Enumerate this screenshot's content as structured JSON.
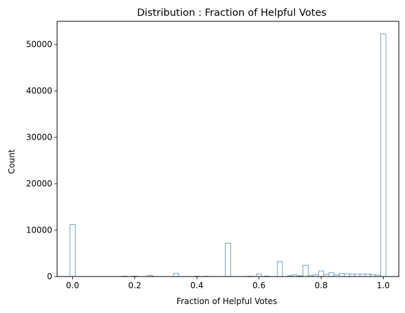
{
  "chart_data": {
    "type": "bar",
    "title": "Distribution : Fraction of Helpful Votes",
    "xlabel": "Fraction of Helpful Votes",
    "ylabel": "Count",
    "xlim": [
      -0.05,
      1.05
    ],
    "ylim": [
      0,
      55000
    ],
    "xticks": [
      0.0,
      0.2,
      0.4,
      0.6,
      0.8,
      1.0
    ],
    "xtick_labels": [
      "0.0",
      "0.2",
      "0.4",
      "0.6",
      "0.8",
      "1.0"
    ],
    "yticks": [
      0,
      10000,
      20000,
      30000,
      40000,
      50000
    ],
    "ytick_labels": [
      "0",
      "10000",
      "20000",
      "30000",
      "40000",
      "50000"
    ],
    "bar_edge_color": "#4c8fbd",
    "bar_fill_color": "#ffffff",
    "grid": false,
    "bin_width": 0.0167,
    "bins": [
      {
        "x": 0.0,
        "count": 11200
      },
      {
        "x": 0.167,
        "count": 80
      },
      {
        "x": 0.2,
        "count": 100
      },
      {
        "x": 0.25,
        "count": 200
      },
      {
        "x": 0.333,
        "count": 700
      },
      {
        "x": 0.4,
        "count": 80
      },
      {
        "x": 0.429,
        "count": 60
      },
      {
        "x": 0.5,
        "count": 7200
      },
      {
        "x": 0.571,
        "count": 70
      },
      {
        "x": 0.6,
        "count": 550
      },
      {
        "x": 0.625,
        "count": 100
      },
      {
        "x": 0.667,
        "count": 3200
      },
      {
        "x": 0.7,
        "count": 150
      },
      {
        "x": 0.714,
        "count": 350
      },
      {
        "x": 0.733,
        "count": 150
      },
      {
        "x": 0.75,
        "count": 2450
      },
      {
        "x": 0.767,
        "count": 200
      },
      {
        "x": 0.783,
        "count": 350
      },
      {
        "x": 0.8,
        "count": 1200
      },
      {
        "x": 0.817,
        "count": 450
      },
      {
        "x": 0.833,
        "count": 850
      },
      {
        "x": 0.85,
        "count": 350
      },
      {
        "x": 0.867,
        "count": 650
      },
      {
        "x": 0.883,
        "count": 600
      },
      {
        "x": 0.9,
        "count": 550
      },
      {
        "x": 0.917,
        "count": 550
      },
      {
        "x": 0.933,
        "count": 550
      },
      {
        "x": 0.95,
        "count": 550
      },
      {
        "x": 0.967,
        "count": 450
      },
      {
        "x": 0.983,
        "count": 300
      },
      {
        "x": 1.0,
        "count": 52300
      }
    ]
  }
}
